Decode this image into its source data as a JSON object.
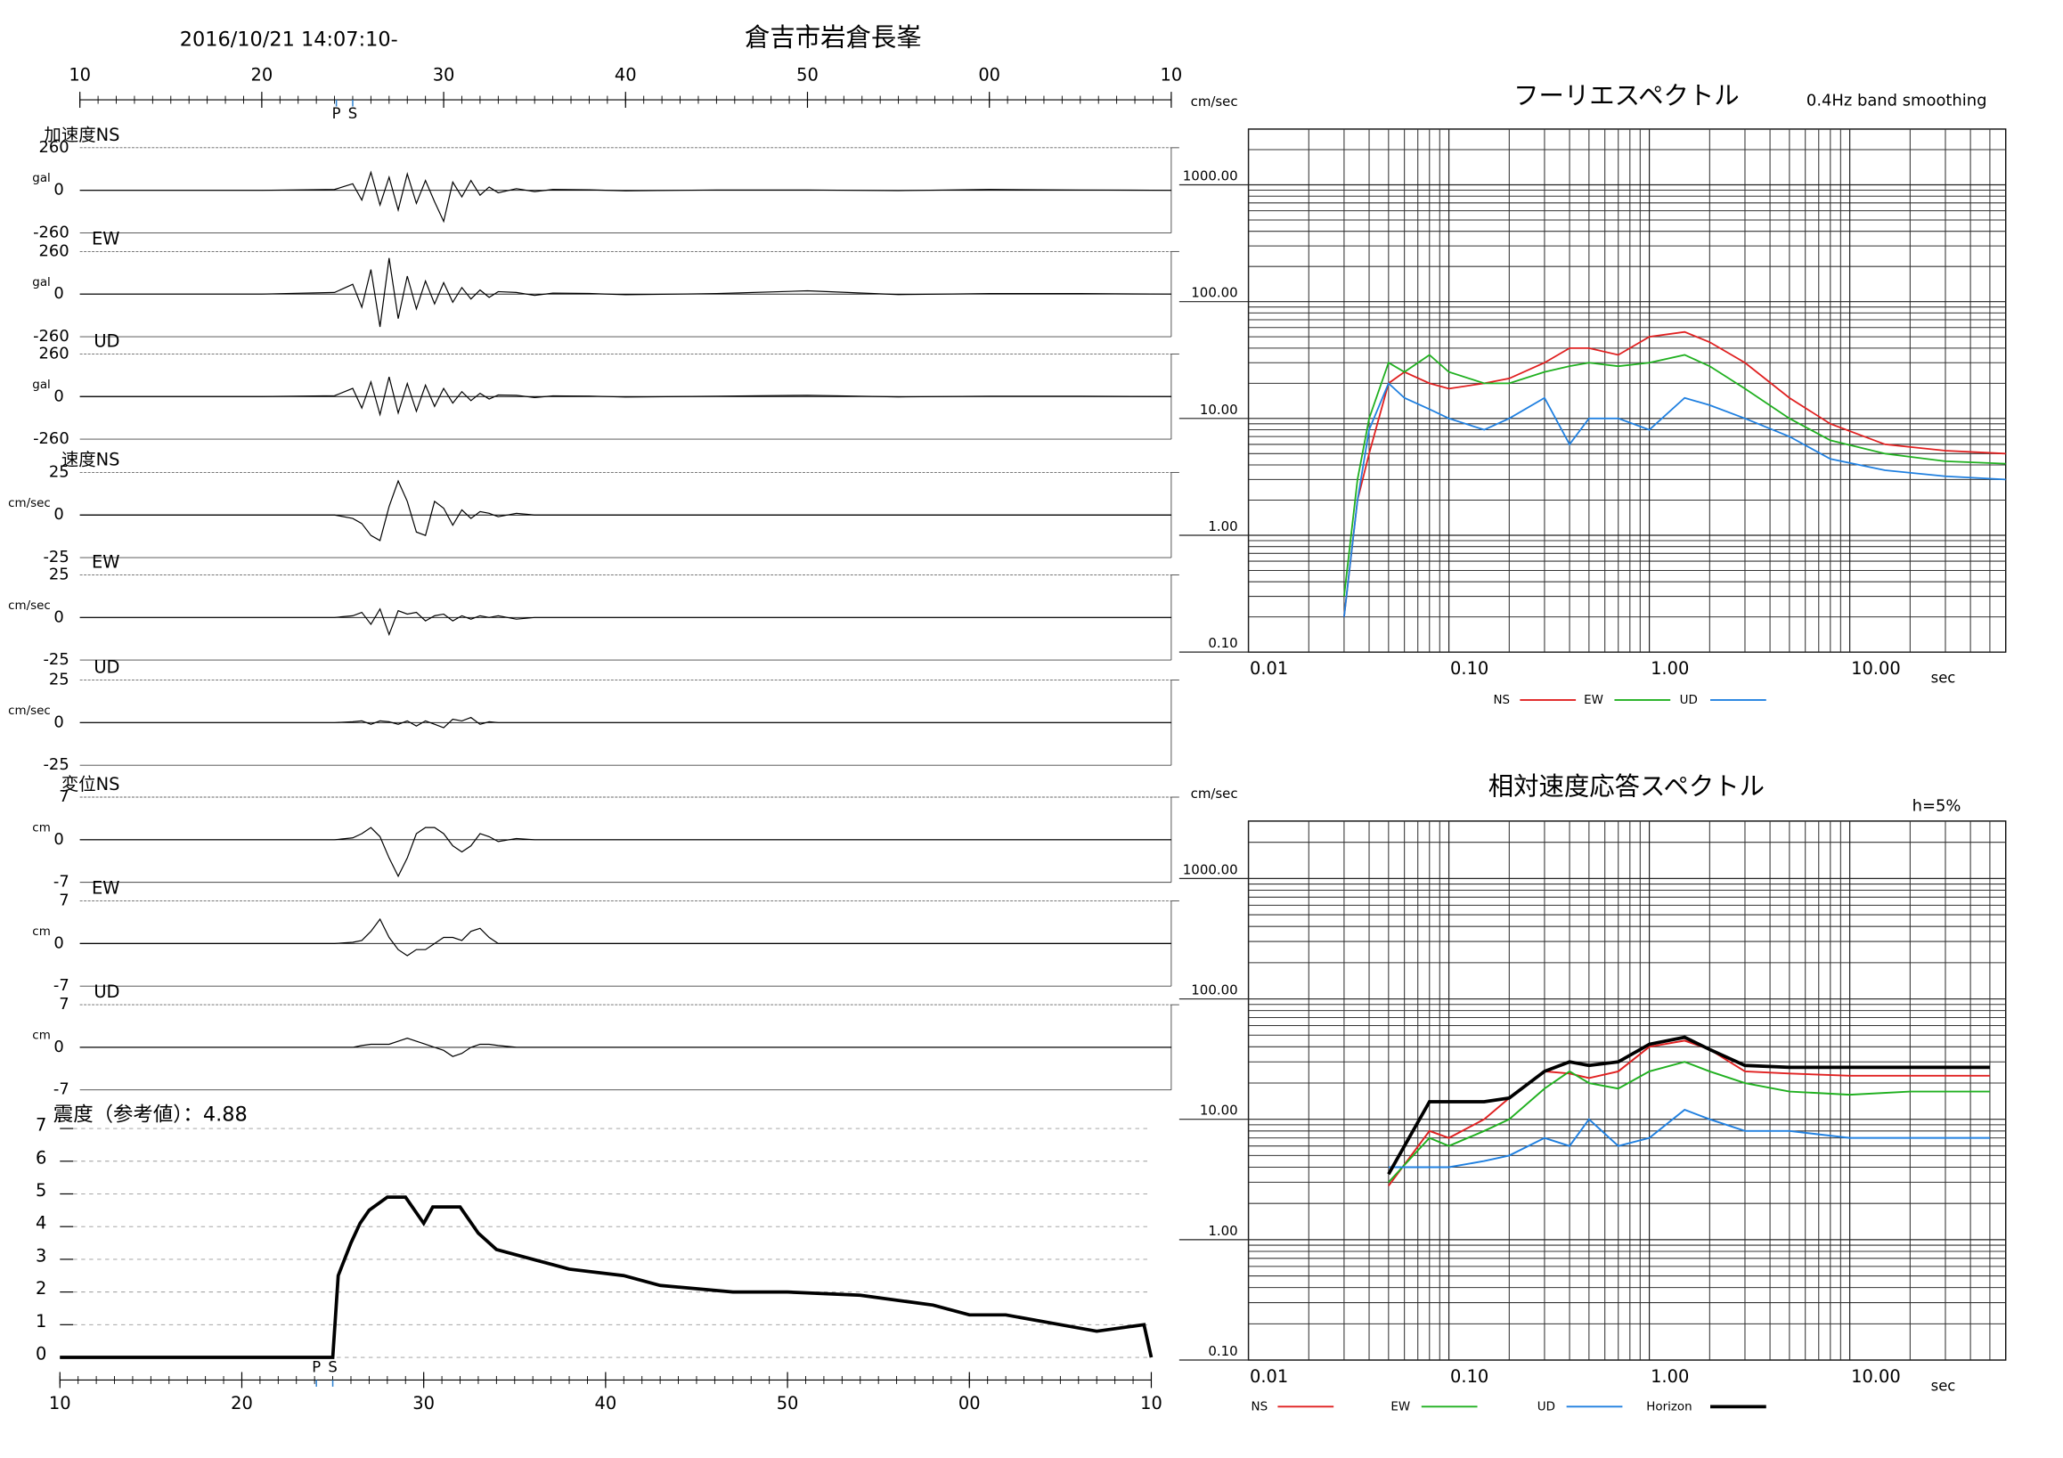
{
  "chart_data": [
    {
      "type": "waveform",
      "title": "倉吉市岩倉長峯",
      "subtitle": "2016/10/21 14:07:10-",
      "xlim": [
        0,
        60
      ],
      "xticks": [
        {
          "value": 0,
          "label": "10"
        },
        {
          "value": 10,
          "label": "20"
        },
        {
          "value": 20,
          "label": "30"
        },
        {
          "value": 30,
          "label": "40"
        },
        {
          "value": 40,
          "label": "50"
        },
        {
          "value": 50,
          "label": "00"
        },
        {
          "value": 60,
          "label": "10"
        }
      ],
      "annotations": [
        {
          "text": "P",
          "x": 14.1
        },
        {
          "text": "S",
          "x": 15
        }
      ],
      "x": [
        0,
        10,
        14,
        15,
        15.5,
        16,
        16.5,
        17,
        17.5,
        18,
        18.5,
        19,
        19.5,
        20,
        20.5,
        21,
        21.5,
        22,
        22.5,
        23,
        24,
        25,
        26,
        28,
        30,
        35,
        40,
        45,
        50,
        55,
        60
      ],
      "series": [
        {
          "name": "加速度NS",
          "unit": "gal",
          "color": "#000000",
          "ylim": [
            -260,
            260
          ],
          "yticks": [
            -260,
            0,
            260
          ],
          "values": [
            0,
            0,
            5,
            40,
            -60,
            110,
            -90,
            80,
            -120,
            100,
            -80,
            60,
            -70,
            -190,
            50,
            -40,
            60,
            -30,
            20,
            -15,
            10,
            -8,
            5,
            3,
            -3,
            2,
            2,
            -2,
            5,
            2,
            0
          ]
        },
        {
          "name": "EW",
          "unit": "gal",
          "color": "#000000",
          "ylim": [
            -260,
            260
          ],
          "yticks": [
            -260,
            0,
            260
          ],
          "values": [
            0,
            0,
            10,
            60,
            -80,
            150,
            -200,
            220,
            -150,
            110,
            -90,
            80,
            -60,
            70,
            -50,
            40,
            -30,
            25,
            -20,
            15,
            10,
            -8,
            6,
            4,
            -4,
            3,
            20,
            -3,
            3,
            3,
            0
          ]
        },
        {
          "name": "UD",
          "unit": "gal",
          "color": "#000000",
          "ylim": [
            -260,
            260
          ],
          "yticks": [
            -260,
            0,
            260
          ],
          "values": [
            0,
            0,
            5,
            50,
            -70,
            90,
            -110,
            120,
            -100,
            80,
            -90,
            70,
            -60,
            50,
            -40,
            30,
            -25,
            20,
            -15,
            10,
            8,
            -6,
            4,
            3,
            -3,
            2,
            8,
            -2,
            2,
            2,
            0
          ]
        },
        {
          "name": "速度NS",
          "unit": "cm/sec",
          "color": "#000000",
          "ylim": [
            -25,
            25
          ],
          "yticks": [
            -25,
            0,
            25
          ],
          "values": [
            0,
            0,
            0,
            -2,
            -5,
            -12,
            -15,
            5,
            20,
            8,
            -10,
            -12,
            8,
            4,
            -6,
            3,
            -2,
            2,
            1,
            -1,
            1,
            0,
            0,
            0,
            0,
            0,
            0,
            0,
            0,
            0,
            0
          ]
        },
        {
          "name": "EW",
          "unit": "cm/sec",
          "color": "#000000",
          "ylim": [
            -25,
            25
          ],
          "yticks": [
            -25,
            0,
            25
          ],
          "values": [
            0,
            0,
            0,
            1,
            3,
            -4,
            5,
            -10,
            4,
            2,
            3,
            -2,
            1,
            2,
            -2,
            1,
            -1,
            1,
            0,
            1,
            -1,
            0,
            0,
            0,
            0,
            0,
            0,
            0,
            0,
            0,
            0
          ]
        },
        {
          "name": "UD",
          "unit": "cm/sec",
          "color": "#000000",
          "ylim": [
            -25,
            25
          ],
          "yticks": [
            -25,
            0,
            25
          ],
          "values": [
            0,
            0,
            0,
            0.5,
            1,
            -1,
            1,
            0.5,
            -1,
            1,
            -2,
            1,
            -1,
            -3,
            2,
            1,
            3,
            -1,
            0.5,
            0,
            0,
            0,
            0,
            0,
            0,
            0,
            0,
            0,
            0,
            0,
            0
          ]
        },
        {
          "name": "変位NS",
          "unit": "cm",
          "color": "#000000",
          "ylim": [
            -7,
            7
          ],
          "yticks": [
            -7,
            0,
            7
          ],
          "values": [
            0,
            0,
            0,
            0.3,
            1,
            2,
            0.5,
            -3,
            -6,
            -3,
            1,
            2,
            2,
            1,
            -1,
            -2,
            -1,
            1,
            0.5,
            -0.3,
            0.2,
            0,
            0,
            0,
            0,
            0,
            0,
            0,
            0,
            0,
            0
          ]
        },
        {
          "name": "EW",
          "unit": "cm",
          "color": "#000000",
          "ylim": [
            -7,
            7
          ],
          "yticks": [
            -7,
            0,
            7
          ],
          "values": [
            0,
            0,
            0,
            0.2,
            0.5,
            2,
            4,
            1,
            -1,
            -2,
            -1,
            -1,
            0,
            1,
            1,
            0.5,
            2,
            2.5,
            1,
            0,
            0,
            0,
            0,
            0,
            0,
            0,
            0,
            0,
            0,
            0,
            0
          ]
        },
        {
          "name": "UD",
          "unit": "cm",
          "color": "#000000",
          "ylim": [
            -7,
            7
          ],
          "yticks": [
            -7,
            0,
            7
          ],
          "values": [
            0,
            0,
            0,
            0,
            0.3,
            0.5,
            0.5,
            0.5,
            1,
            1.5,
            1,
            0.5,
            0,
            -0.5,
            -1.5,
            -1,
            0,
            0.5,
            0.5,
            0.3,
            0,
            0,
            0,
            0,
            0,
            0,
            0,
            0,
            0,
            0,
            0
          ]
        }
      ]
    },
    {
      "type": "line",
      "title": "震度（参考値）：4.88",
      "color": "#000000",
      "xlim": [
        0,
        60
      ],
      "xticks": [
        {
          "value": 0,
          "label": "10"
        },
        {
          "value": 10,
          "label": "20"
        },
        {
          "value": 20,
          "label": "30"
        },
        {
          "value": 30,
          "label": "40"
        },
        {
          "value": 40,
          "label": "50"
        },
        {
          "value": 50,
          "label": "00"
        },
        {
          "value": 60,
          "label": "10"
        }
      ],
      "ylim": [
        0,
        7
      ],
      "yticks": [
        0,
        1,
        2,
        3,
        4,
        5,
        6,
        7
      ],
      "grid": true,
      "annotations": [
        {
          "text": "P",
          "x": 14.1
        },
        {
          "text": "S",
          "x": 15
        }
      ],
      "x": [
        0,
        15,
        15.3,
        16,
        16.5,
        17,
        18,
        19,
        19.5,
        20,
        20.5,
        22,
        23,
        24,
        26,
        28,
        31,
        33,
        37,
        40,
        44,
        48,
        50,
        52,
        55,
        57,
        59.6,
        60
      ],
      "values": [
        0,
        0,
        2.5,
        3.5,
        4.1,
        4.5,
        4.9,
        4.9,
        4.5,
        4.1,
        4.6,
        4.6,
        3.8,
        3.3,
        3.0,
        2.7,
        2.5,
        2.2,
        2.0,
        2.0,
        1.9,
        1.6,
        1.3,
        1.3,
        1.0,
        0.8,
        1.0,
        0
      ]
    },
    {
      "type": "spectrum",
      "title": "フーリエスペクトル",
      "subtitle": "0.4Hz band smoothing",
      "xlabel": "sec",
      "ylabel": "cm/sec",
      "xscale": "log",
      "yscale": "log",
      "grid": true,
      "xlim": [
        0.01,
        60
      ],
      "ylim": [
        0.1,
        3000
      ],
      "xticks": [
        0.01,
        {
          "value": 0.1,
          "label": "0.10"
        },
        {
          "value": 1,
          "label": "1.00"
        },
        {
          "value": 10,
          "label": "10.00"
        }
      ],
      "yticks": [
        {
          "value": 0.1,
          "label": "0.10"
        },
        {
          "value": 1,
          "label": "1.00"
        },
        {
          "value": 10,
          "label": "10.00"
        },
        {
          "value": 100,
          "label": "100.00"
        },
        {
          "value": 1000,
          "label": "1000.00"
        }
      ],
      "x": [
        0.03,
        0.035,
        0.04,
        0.05,
        0.06,
        0.08,
        0.1,
        0.15,
        0.2,
        0.3,
        0.4,
        0.5,
        0.7,
        1,
        1.5,
        2,
        3,
        5,
        8,
        15,
        30,
        60
      ],
      "series": [
        {
          "name": "NS",
          "color": "#e02020",
          "values": [
            0.2,
            2,
            5,
            20,
            25,
            20,
            18,
            20,
            22,
            30,
            40,
            40,
            35,
            50,
            55,
            45,
            30,
            15,
            9,
            6,
            5.3,
            5
          ]
        },
        {
          "name": "EW",
          "color": "#20b020",
          "values": [
            0.3,
            3,
            10,
            30,
            25,
            35,
            25,
            20,
            20,
            25,
            28,
            30,
            28,
            30,
            35,
            28,
            18,
            10,
            6.5,
            5,
            4.3,
            4.1
          ]
        },
        {
          "name": "UD",
          "color": "#2080e0",
          "values": [
            0.2,
            2,
            8,
            20,
            15,
            12,
            10,
            8,
            10,
            15,
            6,
            10,
            10,
            8,
            15,
            13,
            10,
            7,
            4.5,
            3.6,
            3.2,
            3
          ]
        }
      ]
    },
    {
      "type": "spectrum",
      "title": "相対速度応答スペクトル",
      "subtitle": "h=5%",
      "xlabel": "sec",
      "ylabel": "cm/sec",
      "xscale": "log",
      "yscale": "log",
      "grid": true,
      "xlim": [
        0.01,
        60
      ],
      "ylim": [
        0.1,
        3000
      ],
      "xticks": [
        0.01,
        {
          "value": 0.1,
          "label": "0.10"
        },
        {
          "value": 1,
          "label": "1.00"
        },
        {
          "value": 10,
          "label": "10.00"
        }
      ],
      "yticks": [
        {
          "value": 0.1,
          "label": "0.10"
        },
        {
          "value": 1,
          "label": "1.00"
        },
        {
          "value": 10,
          "label": "10.00"
        },
        {
          "value": 100,
          "label": "100.00"
        },
        {
          "value": 1000,
          "label": "1000.00"
        }
      ],
      "x": [
        0.05,
        0.08,
        0.1,
        0.15,
        0.2,
        0.3,
        0.4,
        0.5,
        0.7,
        1,
        1.5,
        2,
        3,
        5,
        10,
        20,
        50
      ],
      "series": [
        {
          "name": "NS",
          "color": "#e02020",
          "line_width": 1.3,
          "values": [
            2.8,
            8,
            7,
            10,
            15,
            25,
            24,
            22,
            25,
            40,
            45,
            38,
            25,
            24,
            23,
            23,
            23
          ]
        },
        {
          "name": "EW",
          "color": "#20b020",
          "line_width": 1.3,
          "values": [
            3,
            7,
            6,
            8,
            10,
            18,
            25,
            20,
            18,
            25,
            30,
            25,
            20,
            17,
            16,
            17,
            17
          ]
        },
        {
          "name": "UD",
          "color": "#2080e0",
          "line_width": 1.3,
          "values": [
            4,
            4,
            4,
            4.5,
            5,
            7,
            6,
            10,
            6,
            7,
            12,
            10,
            8,
            8,
            7,
            7,
            7
          ]
        },
        {
          "name": "Horizon",
          "color": "#000000",
          "line_width": 2.5,
          "values": [
            3.5,
            14,
            14,
            14,
            15,
            25,
            30,
            28,
            30,
            42,
            48,
            38,
            28,
            27,
            27,
            27,
            27
          ]
        }
      ]
    }
  ]
}
